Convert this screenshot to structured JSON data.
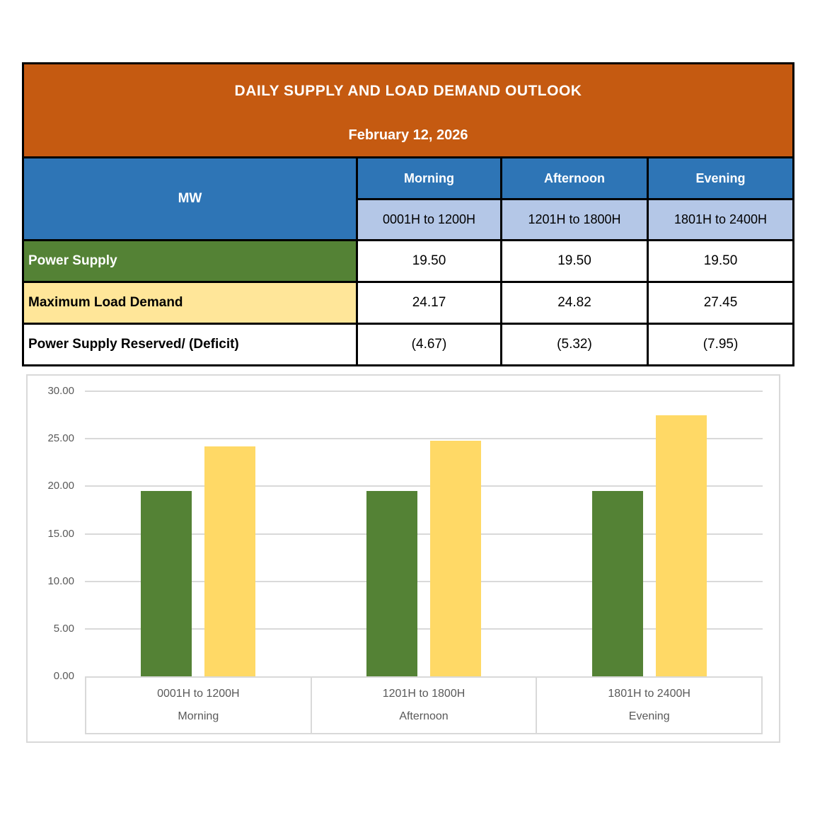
{
  "table": {
    "title": "DAILY SUPPLY AND LOAD DEMAND OUTLOOK",
    "date": "February 12, 2026",
    "unit_label": "MW",
    "periods": [
      {
        "name": "Morning",
        "hours": "0001H to 1200H"
      },
      {
        "name": "Afternoon",
        "hours": "1201H to 1800H"
      },
      {
        "name": "Evening",
        "hours": "1801H to 2400H"
      }
    ],
    "rows": [
      {
        "label": "Power Supply",
        "values": [
          "19.50",
          "19.50",
          "19.50"
        ]
      },
      {
        "label": "Maximum Load Demand",
        "values": [
          "24.17",
          "24.82",
          "27.45"
        ]
      },
      {
        "label": "Power Supply Reserved/ (Deficit)",
        "values": [
          "(4.67)",
          "(5.32)",
          "(7.95)"
        ]
      }
    ]
  },
  "chart_data": {
    "type": "bar",
    "title": "",
    "categories": [
      {
        "hours": "0001H to 1200H",
        "period": "Morning"
      },
      {
        "hours": "1201H to 1800H",
        "period": "Afternoon"
      },
      {
        "hours": "1801H to 2400H",
        "period": "Evening"
      }
    ],
    "series": [
      {
        "name": "Power Supply",
        "color": "#548235",
        "values": [
          19.5,
          19.5,
          19.5
        ]
      },
      {
        "name": "Maximum Load Demand",
        "color": "#FFD966",
        "values": [
          24.17,
          24.82,
          27.45
        ]
      }
    ],
    "ylim": [
      0,
      30
    ],
    "ytick_step": 5,
    "ytick_decimals": 2,
    "grid": true,
    "legend_position": "none"
  },
  "colors": {
    "header-orange": "#C55A11",
    "header-blue": "#2E75B6",
    "subheader-blue": "#B4C7E7",
    "supply-green": "#548235",
    "demand-yellow": "#FFE699",
    "bar-green": "#548235",
    "bar-yellow": "#FFD966",
    "axis-text": "#595959",
    "gridline": "#D9D9D9"
  }
}
